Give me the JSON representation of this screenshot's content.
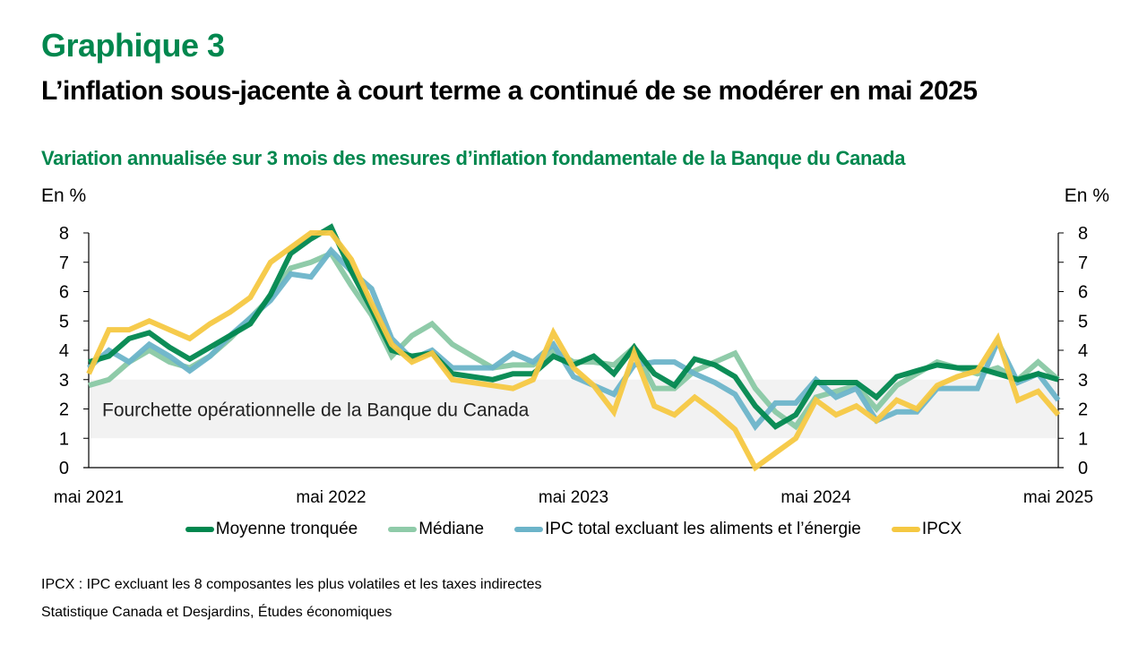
{
  "header": {
    "kicker": "Graphique 3",
    "title": "L’inflation sous-jacente à court terme a continué de se modérer en mai 2025",
    "subtitle": "Variation annualisée sur 3 mois des mesures d’inflation fondamentale de la Banque du Canada"
  },
  "axis_units": {
    "left": "En %",
    "right": "En %"
  },
  "footnotes": {
    "note": "IPCX : IPC excluant les 8 composantes les plus volatiles et les taxes indirectes",
    "source": "Statistique Canada et Desjardins, Études économiques"
  },
  "chart_data": {
    "type": "line",
    "title": "L’inflation sous-jacente à court terme a continué de se modérer en mai 2025",
    "subtitle": "Variation annualisée sur 3 mois des mesures d’inflation fondamentale de la Banque du Canada",
    "xlabel": "",
    "ylabel": "En %",
    "ylabel_right": "En %",
    "ylim": [
      0,
      8
    ],
    "yticks": [
      0,
      1,
      2,
      3,
      4,
      5,
      6,
      7,
      8
    ],
    "x_start": "mai 2021",
    "x_end": "mai 2025",
    "frequency": "monthly",
    "x_tick_labels": [
      "mai 2021",
      "mai 2022",
      "mai 2023",
      "mai 2024",
      "mai 2025"
    ],
    "x_tick_indices": [
      0,
      12,
      24,
      36,
      48
    ],
    "grid": false,
    "legend_position": "bottom",
    "band": {
      "label": "Fourchette opérationnelle de la Banque du Canada",
      "from": 1,
      "to": 3,
      "color": "#F2F2F2"
    },
    "series": [
      {
        "name": "Moyenne tronquée",
        "color": "#00874E",
        "values": [
          3.6,
          3.8,
          4.4,
          4.6,
          4.1,
          3.7,
          4.1,
          4.5,
          4.9,
          5.9,
          7.3,
          7.8,
          8.2,
          6.7,
          5.4,
          4.0,
          3.8,
          3.9,
          3.2,
          3.1,
          3.0,
          3.2,
          3.2,
          3.8,
          3.5,
          3.8,
          3.2,
          4.1,
          3.2,
          2.8,
          3.7,
          3.5,
          3.1,
          2.1,
          1.4,
          1.8,
          2.9,
          2.9,
          2.9,
          2.4,
          3.1,
          3.3,
          3.5,
          3.4,
          3.4,
          3.2,
          3.0,
          3.2,
          3.0
        ]
      },
      {
        "name": "Médiane",
        "color": "#8FCBA9",
        "values": [
          2.8,
          3.0,
          3.6,
          4.0,
          3.6,
          3.4,
          3.8,
          4.4,
          5.1,
          5.8,
          6.8,
          7.0,
          7.3,
          6.2,
          5.2,
          3.8,
          4.5,
          4.9,
          4.2,
          3.8,
          3.4,
          3.5,
          3.5,
          4.0,
          3.6,
          3.6,
          3.5,
          4.1,
          2.7,
          2.7,
          3.3,
          3.6,
          3.9,
          2.7,
          1.9,
          1.4,
          2.4,
          2.6,
          2.8,
          2.0,
          2.8,
          3.2,
          3.6,
          3.4,
          3.2,
          3.4,
          3.0,
          3.6,
          3.0
        ]
      },
      {
        "name": "IPC total excluant les aliments et l’énergie",
        "color": "#6CB4C9",
        "values": [
          3.4,
          4.0,
          3.6,
          4.2,
          3.8,
          3.3,
          3.8,
          4.5,
          5.1,
          5.7,
          6.6,
          6.5,
          7.4,
          6.7,
          6.1,
          4.4,
          3.7,
          4.0,
          3.4,
          3.4,
          3.4,
          3.9,
          3.6,
          4.2,
          3.1,
          2.8,
          2.5,
          3.5,
          3.6,
          3.6,
          3.2,
          2.9,
          2.5,
          1.4,
          2.2,
          2.2,
          3.0,
          2.4,
          2.7,
          1.6,
          1.9,
          1.9,
          2.7,
          2.7,
          2.7,
          4.3,
          2.9,
          3.2,
          2.3
        ]
      },
      {
        "name": "IPCX",
        "color": "#F5C842",
        "values": [
          3.2,
          4.7,
          4.7,
          5.0,
          4.7,
          4.4,
          4.9,
          5.3,
          5.8,
          7.0,
          7.5,
          8.0,
          8.0,
          7.1,
          5.6,
          4.2,
          3.6,
          3.9,
          3.0,
          2.9,
          2.8,
          2.7,
          3.0,
          4.6,
          3.4,
          2.8,
          1.9,
          3.9,
          2.1,
          1.8,
          2.4,
          1.9,
          1.3,
          0.0,
          0.5,
          1.0,
          2.3,
          1.8,
          2.1,
          1.6,
          2.3,
          2.0,
          2.8,
          3.1,
          3.3,
          4.4,
          2.3,
          2.6,
          1.8
        ]
      }
    ]
  }
}
